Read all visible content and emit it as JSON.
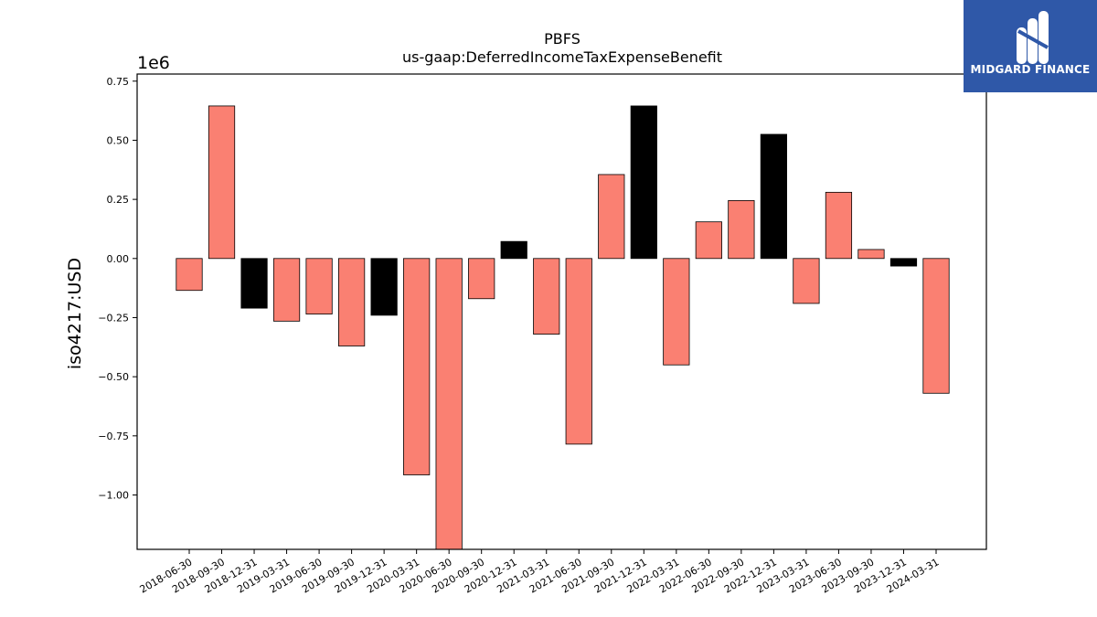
{
  "chart_data": {
    "type": "bar",
    "title": "PBFS",
    "subtitle": "us-gaap:DeferredIncomeTaxExpenseBenefit",
    "xlabel": "",
    "ylabel": "iso4217:USD",
    "y_offset_label": "1e6",
    "ylim": [
      -1.23,
      0.78
    ],
    "yticks": [
      -1.0,
      -0.75,
      -0.5,
      -0.25,
      0.0,
      0.25,
      0.5,
      0.75
    ],
    "ytick_labels": [
      "−1.00",
      "−0.75",
      "−0.50",
      "−0.25",
      "0.00",
      "0.25",
      "0.50",
      "0.75"
    ],
    "grid": false,
    "categories": [
      "2018-06-30",
      "2018-09-30",
      "2018-12-31",
      "2019-03-31",
      "2019-06-30",
      "2019-09-30",
      "2019-12-31",
      "2020-03-31",
      "2020-06-30",
      "2020-09-30",
      "2020-12-31",
      "2021-03-31",
      "2021-06-30",
      "2021-09-30",
      "2021-12-31",
      "2022-03-31",
      "2022-06-30",
      "2022-09-30",
      "2022-12-31",
      "2023-03-31",
      "2023-06-30",
      "2023-09-30",
      "2023-12-31",
      "2024-03-31"
    ],
    "values": [
      -0.135,
      0.645,
      -0.21,
      -0.265,
      -0.235,
      -0.37,
      -0.24,
      -0.915,
      -1.25,
      -0.17,
      0.072,
      -0.32,
      -0.785,
      0.355,
      0.645,
      -0.45,
      0.155,
      0.245,
      0.525,
      -0.19,
      0.28,
      0.038,
      -0.032,
      -0.57
    ],
    "colors": [
      "salmon",
      "salmon",
      "black",
      "salmon",
      "salmon",
      "salmon",
      "black",
      "salmon",
      "salmon",
      "salmon",
      "black",
      "salmon",
      "salmon",
      "salmon",
      "black",
      "salmon",
      "salmon",
      "salmon",
      "black",
      "salmon",
      "salmon",
      "salmon",
      "black",
      "salmon"
    ],
    "color_map": {
      "salmon": "#fa8072",
      "black": "#000000"
    }
  },
  "logo": {
    "text": "MIDGARD FINANCE",
    "background": "#2f58a8"
  }
}
